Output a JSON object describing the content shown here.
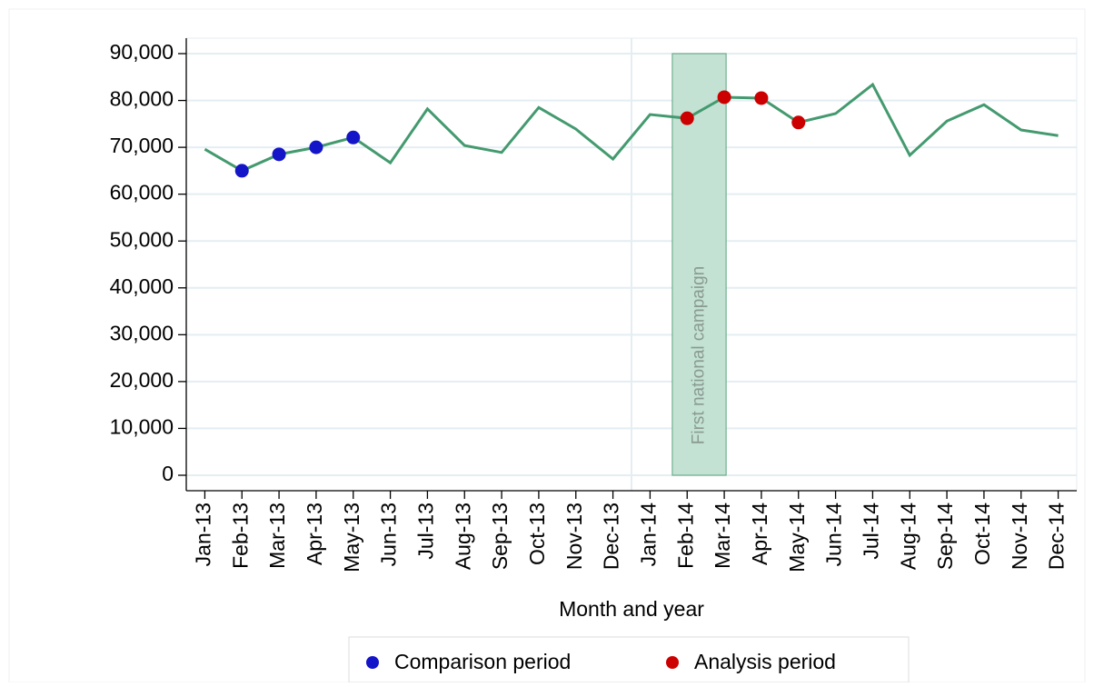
{
  "chart_data": {
    "type": "line",
    "x_label": "Month and year",
    "categories": [
      "Jan-13",
      "Feb-13",
      "Mar-13",
      "Apr-13",
      "May-13",
      "Jun-13",
      "Jul-13",
      "Aug-13",
      "Sep-13",
      "Oct-13",
      "Nov-13",
      "Dec-13",
      "Jan-14",
      "Feb-14",
      "Mar-14",
      "Apr-14",
      "May-14",
      "Jun-14",
      "Jul-14",
      "Aug-14",
      "Sep-14",
      "Oct-14",
      "Nov-14",
      "Dec-14"
    ],
    "values": [
      69600,
      65000,
      68500,
      70000,
      72100,
      66700,
      78200,
      70400,
      68900,
      78500,
      73900,
      67500,
      77000,
      76200,
      80700,
      80500,
      75300,
      77200,
      83400,
      68300,
      75600,
      79100,
      73700,
      72500
    ],
    "color": "#449a6f",
    "series": [
      {
        "name": "Comparison period",
        "color": "#1414c8",
        "values": [
          null,
          65000,
          68500,
          70000,
          72100,
          null,
          null,
          null,
          null,
          null,
          null,
          null,
          null,
          null,
          null,
          null,
          null,
          null,
          null,
          null,
          null,
          null,
          null,
          null
        ]
      },
      {
        "name": "Analysis period",
        "color": "#cc0000",
        "values": [
          null,
          null,
          null,
          null,
          null,
          null,
          null,
          null,
          null,
          null,
          null,
          null,
          null,
          76200,
          80700,
          80500,
          75300,
          null,
          null,
          null,
          null,
          null,
          null,
          null
        ]
      }
    ],
    "ylim": [
      -3300,
      93300
    ],
    "yticks": [
      {
        "value": 0,
        "label": "0"
      },
      {
        "value": 10000,
        "label": "10,000"
      },
      {
        "value": 20000,
        "label": "20,000"
      },
      {
        "value": 30000,
        "label": "30,000"
      },
      {
        "value": 40000,
        "label": "40,000"
      },
      {
        "value": 50000,
        "label": "50,000"
      },
      {
        "value": 60000,
        "label": "60,000"
      },
      {
        "value": 70000,
        "label": "70,000"
      },
      {
        "value": 80000,
        "label": "80,000"
      },
      {
        "value": 90000,
        "label": "90,000"
      }
    ],
    "grid": true,
    "vline_x": 11.5,
    "band": {
      "label": "First national campaign",
      "x": [
        12.6,
        14.05
      ],
      "y": [
        0,
        90000
      ],
      "color": "#c3e2d3"
    }
  }
}
